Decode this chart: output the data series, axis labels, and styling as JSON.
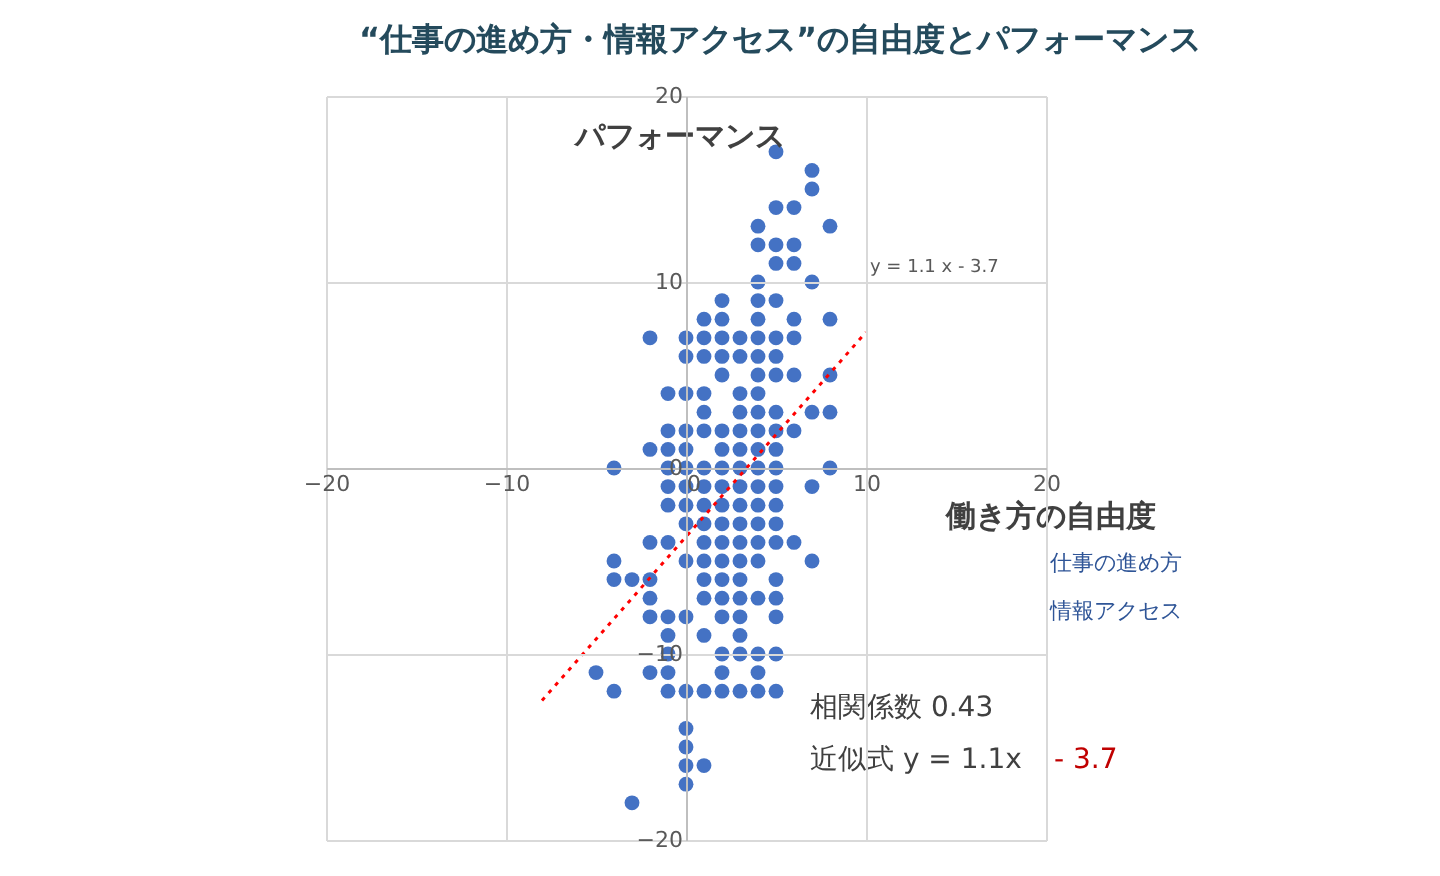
{
  "chart_data": {
    "type": "scatter",
    "title": "“仕事の進め方・情報アクセス”の自由度とパフォーマンス",
    "xlabel": "働き方の自由度",
    "ylabel": "パフォーマンス",
    "xlim": [
      -20,
      20
    ],
    "ylim": [
      -20,
      20
    ],
    "xticks": [
      -20,
      -10,
      0,
      10,
      20
    ],
    "yticks": [
      -20,
      -10,
      0,
      10,
      20
    ],
    "grid": true,
    "marker": "circle",
    "series": [
      {
        "color": "#4472c4",
        "x": [
          5,
          7,
          7,
          5,
          6,
          4,
          8,
          4,
          5,
          6,
          5,
          6,
          4,
          7,
          2,
          4,
          5,
          1,
          2,
          4,
          6,
          8,
          -2,
          0,
          1,
          2,
          3,
          4,
          5,
          6,
          0,
          1,
          2,
          3,
          4,
          5,
          2,
          4,
          5,
          6,
          8,
          -1,
          0,
          1,
          3,
          4,
          1,
          3,
          4,
          5,
          7,
          8,
          -1,
          0,
          1,
          2,
          3,
          4,
          5,
          6,
          -2,
          -1,
          0,
          2,
          3,
          4,
          5,
          -4,
          -1,
          0,
          1,
          2,
          3,
          4,
          5,
          8,
          -1,
          0,
          1,
          2,
          3,
          4,
          5,
          7,
          -1,
          0,
          1,
          2,
          3,
          4,
          5,
          0,
          1,
          2,
          3,
          4,
          5,
          -2,
          -1,
          1,
          2,
          3,
          4,
          5,
          6,
          -4,
          0,
          1,
          2,
          3,
          4,
          7,
          -4,
          -3,
          -2,
          1,
          2,
          3,
          5,
          -2,
          1,
          2,
          3,
          4,
          5,
          -2,
          -1,
          0,
          2,
          3,
          5,
          -1,
          1,
          3,
          -1,
          2,
          3,
          4,
          5,
          -5,
          -2,
          -1,
          2,
          4,
          -4,
          -1,
          0,
          1,
          2,
          3,
          4,
          5,
          0,
          0,
          0,
          1,
          0,
          -3
        ],
        "values": [
          17,
          16,
          15,
          14,
          14,
          13,
          13,
          12,
          12,
          12,
          11,
          11,
          10,
          10,
          9,
          9,
          9,
          8,
          8,
          8,
          8,
          8,
          7,
          7,
          7,
          7,
          7,
          7,
          7,
          7,
          6,
          6,
          6,
          6,
          6,
          6,
          5,
          5,
          5,
          5,
          5,
          4,
          4,
          4,
          4,
          4,
          3,
          3,
          3,
          3,
          3,
          3,
          2,
          2,
          2,
          2,
          2,
          2,
          2,
          2,
          1,
          1,
          1,
          1,
          1,
          1,
          1,
          0,
          0,
          0,
          0,
          0,
          0,
          0,
          0,
          0,
          -1,
          -1,
          -1,
          -1,
          -1,
          -1,
          -1,
          -1,
          -2,
          -2,
          -2,
          -2,
          -2,
          -2,
          -2,
          -3,
          -3,
          -3,
          -3,
          -3,
          -3,
          -4,
          -4,
          -4,
          -4,
          -4,
          -4,
          -4,
          -4,
          -5,
          -5,
          -5,
          -5,
          -5,
          -5,
          -5,
          -6,
          -6,
          -6,
          -6,
          -6,
          -6,
          -6,
          -7,
          -7,
          -7,
          -7,
          -7,
          -7,
          -8,
          -8,
          -8,
          -8,
          -8,
          -8,
          -9,
          -9,
          -9,
          -10,
          -10,
          -10,
          -10,
          -10,
          -11,
          -11,
          -11,
          -11,
          -11,
          -12,
          -12,
          -12,
          -12,
          -12,
          -12,
          -12,
          -12,
          -14,
          -15,
          -16,
          -16,
          -17,
          -18
        ]
      },
      {
        "type": "line",
        "color": "#ff0000",
        "line_style": "dotted",
        "marker": "none",
        "x": [
          -8,
          10
        ],
        "values": [
          -12.5,
          7.3
        ]
      }
    ],
    "annotations": [
      "y = 1.1 x - 3.7",
      "仕事の進め方",
      "情報アクセス",
      "相関係数  0.43",
      "近似式  y = 1.1x",
      "- 3.7"
    ]
  }
}
